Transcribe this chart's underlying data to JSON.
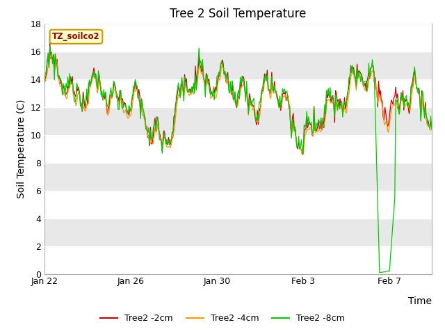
{
  "title": "Tree 2 Soil Temperature",
  "xlabel": "Time",
  "ylabel": "Soil Temperature (C)",
  "ylim": [
    0,
    18
  ],
  "yticks": [
    0,
    2,
    4,
    6,
    8,
    10,
    12,
    14,
    16,
    18
  ],
  "xtick_labels": [
    "Jan 22",
    "Jan 26",
    "Jan 30",
    "Feb 3",
    "Feb 7"
  ],
  "label_2cm": "Tree2 -2cm",
  "label_4cm": "Tree2 -4cm",
  "label_8cm": "Tree2 -8cm",
  "color_2cm": "#cc0000",
  "color_4cm": "#ff9900",
  "color_8cm": "#00cc00",
  "watermark_text": "TZ_soilco2",
  "watermark_bg": "#ffffcc",
  "watermark_border": "#cc9900",
  "band_colors": [
    "#ffffff",
    "#e8e8e8"
  ],
  "title_fontsize": 12,
  "axis_label_fontsize": 10,
  "tick_fontsize": 9,
  "legend_fontsize": 9
}
